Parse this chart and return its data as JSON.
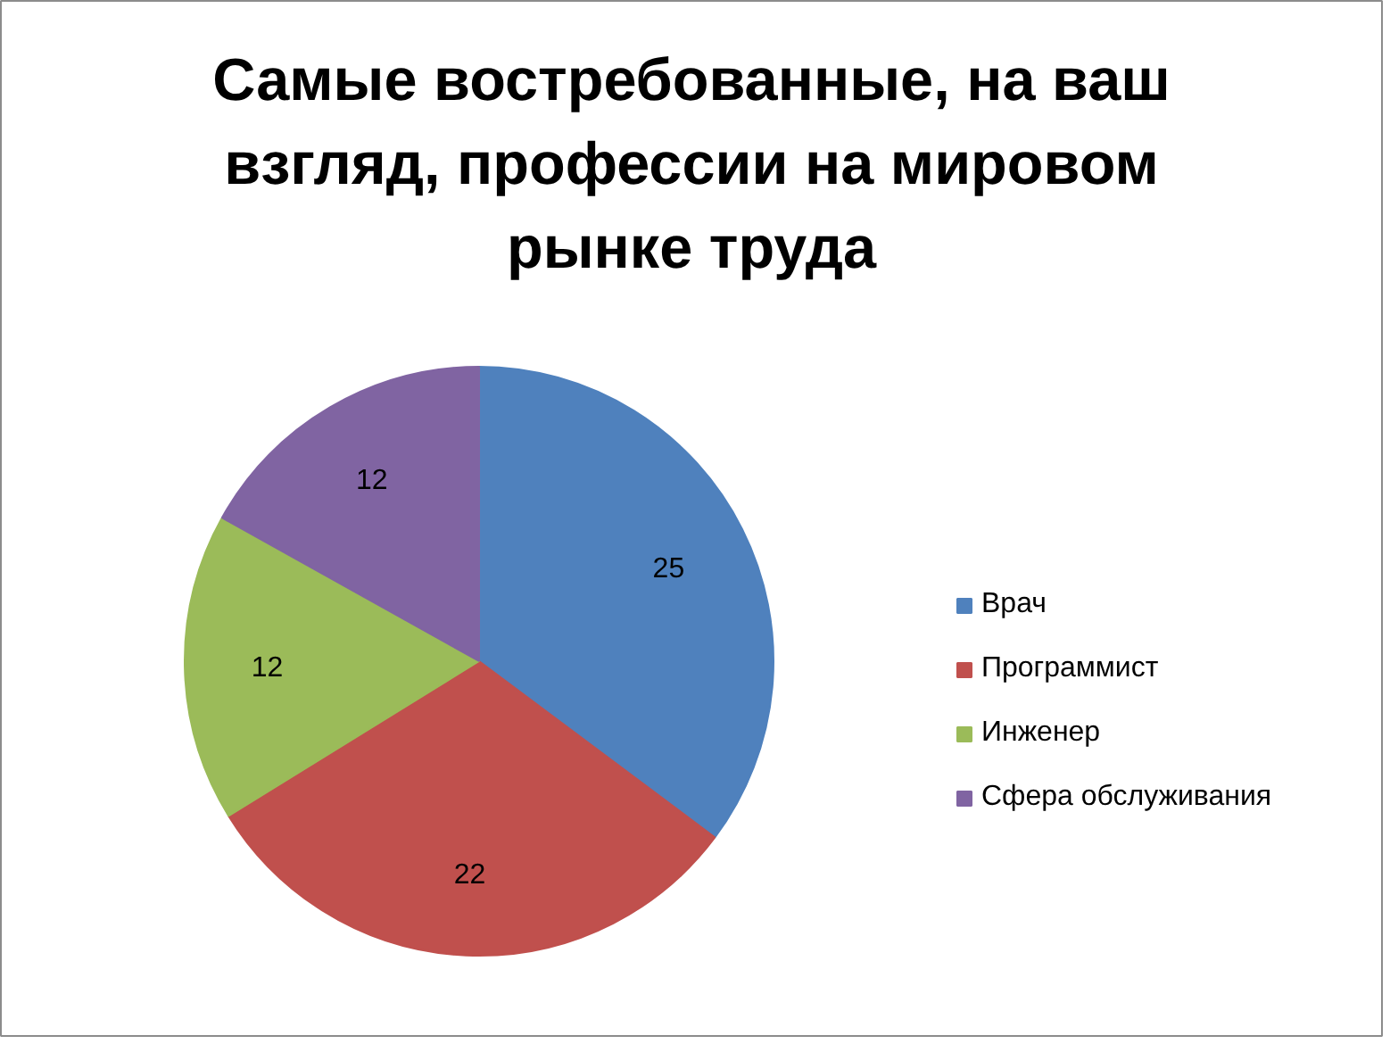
{
  "chart_data": {
    "type": "pie",
    "title": "Самые востребованные, на ваш взгляд, профессии на мировом рынке труда",
    "categories": [
      "Врач",
      "Программист",
      "Инженер",
      "Сфера обслуживания"
    ],
    "values": [
      25,
      22,
      12,
      12
    ],
    "colors": [
      "#4f81bd",
      "#c0504d",
      "#9bbb59",
      "#8064a2"
    ],
    "data_labels": true,
    "legend": "right"
  }
}
